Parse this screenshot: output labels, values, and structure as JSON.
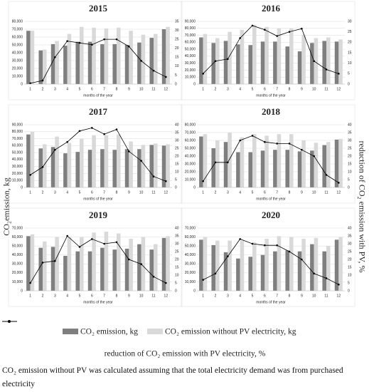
{
  "chart_data": [
    {
      "type": "bar",
      "title": "2015",
      "xlabel": "months of the year",
      "ylabel": "CO₂emission, kg",
      "y2label": "reduction of CO₂ emission with PV, %",
      "categories": [
        "1",
        "2",
        "3",
        "4",
        "5",
        "6",
        "7",
        "8",
        "9",
        "10",
        "11",
        "12"
      ],
      "series": [
        {
          "name": "CO₂ emission, kg",
          "type": "bar",
          "color": "#7f7f7f",
          "values": [
            68000,
            43000,
            51000,
            49000,
            54000,
            54000,
            51000,
            51000,
            50000,
            53000,
            59000,
            70000
          ]
        },
        {
          "name": "CO₂ emission without PV electricity, kg",
          "type": "bar",
          "color": "#d9d9d9",
          "values": [
            68000,
            44000,
            55000,
            64000,
            73000,
            72000,
            71000,
            72000,
            68000,
            63000,
            64000,
            73000
          ]
        },
        {
          "name": "reduction of CO₂ emission with PV electricity, %",
          "type": "line",
          "axis": "y2",
          "color": "#000000",
          "values": [
            0.5,
            2,
            15,
            24,
            23,
            22,
            25,
            25,
            21,
            13,
            7.5,
            4
          ]
        }
      ],
      "ylim": [
        0,
        80000
      ],
      "yticks": [
        0,
        {
          "value": 10000,
          "label": "10,000"
        },
        {
          "value": 20000,
          "label": "20,000"
        },
        {
          "value": 30000,
          "label": "30,000"
        },
        {
          "value": 40000,
          "label": "40,000"
        },
        {
          "value": 50000,
          "label": "50,000"
        },
        {
          "value": 60000,
          "label": "60,000"
        },
        {
          "value": 70000,
          "label": "70,000"
        },
        {
          "value": 80000,
          "label": "80,000"
        }
      ],
      "y2lim": [
        0,
        35
      ],
      "y2ticks": [
        0,
        5,
        10,
        15,
        20,
        25,
        30,
        35
      ],
      "grid": true
    },
    {
      "type": "bar",
      "title": "2016",
      "xlabel": "months of the year",
      "categories": [
        "1",
        "2",
        "3",
        "4",
        "5",
        "6",
        "7",
        "8",
        "9",
        "10",
        "11",
        "12"
      ],
      "series": [
        {
          "type": "bar",
          "color": "#7f7f7f",
          "values": [
            67000,
            59000,
            62000,
            57000,
            56000,
            61000,
            61000,
            54000,
            47000,
            59000,
            62000,
            61000
          ]
        },
        {
          "type": "bar",
          "color": "#d9d9d9",
          "values": [
            72000,
            66000,
            75000,
            78000,
            85000,
            82000,
            80000,
            80000,
            71000,
            66000,
            67000,
            64000
          ]
        },
        {
          "type": "line",
          "axis": "y2",
          "color": "#000000",
          "values": [
            5,
            11,
            12,
            22,
            28,
            26,
            23,
            25,
            26.5,
            11,
            7,
            5
          ]
        }
      ],
      "ylim": [
        0,
        90000
      ],
      "yticks": [
        0,
        {
          "value": 10000,
          "label": "10,000"
        },
        {
          "value": 20000,
          "label": "20,000"
        },
        {
          "value": 30000,
          "label": "30,000"
        },
        {
          "value": 40000,
          "label": "40,000"
        },
        {
          "value": 50000,
          "label": "50,000"
        },
        {
          "value": 60000,
          "label": "60,000"
        },
        {
          "value": 70000,
          "label": "70,000"
        },
        {
          "value": 80000,
          "label": "80,000"
        },
        {
          "value": 90000,
          "label": "90,000"
        }
      ],
      "y2lim": [
        0,
        30
      ],
      "y2ticks": [
        0,
        5,
        10,
        15,
        20,
        25,
        30
      ],
      "grid": true
    },
    {
      "type": "bar",
      "title": "2017",
      "xlabel": "months of the year",
      "categories": [
        "1",
        "2",
        "3",
        "4",
        "5",
        "6",
        "7",
        "8",
        "9",
        "10",
        "11",
        "12"
      ],
      "series": [
        {
          "type": "bar",
          "color": "#7f7f7f",
          "values": [
            76000,
            56000,
            58000,
            49000,
            51000,
            54000,
            55000,
            54000,
            55000,
            55000,
            61000,
            60000
          ]
        },
        {
          "type": "bar",
          "color": "#d9d9d9",
          "values": [
            80000,
            62000,
            73000,
            64000,
            70000,
            75000,
            75000,
            76000,
            66000,
            61000,
            63000,
            62000
          ]
        },
        {
          "type": "line",
          "axis": "y2",
          "color": "#000000",
          "values": [
            8,
            13,
            24,
            29,
            36,
            38,
            34,
            37,
            23,
            17,
            7,
            4
          ]
        }
      ],
      "ylim": [
        0,
        90000
      ],
      "yticks": [
        0,
        {
          "value": 10000,
          "label": "10,000"
        },
        {
          "value": 20000,
          "label": "20,000"
        },
        {
          "value": 30000,
          "label": "30,000"
        },
        {
          "value": 40000,
          "label": "40,000"
        },
        {
          "value": 50000,
          "label": "50,000"
        },
        {
          "value": 60000,
          "label": "60,000"
        },
        {
          "value": 70000,
          "label": "70,000"
        },
        {
          "value": 80000,
          "label": "80,000"
        },
        {
          "value": 90000,
          "label": "90,000"
        }
      ],
      "y2lim": [
        0,
        40
      ],
      "y2ticks": [
        0,
        5,
        10,
        15,
        20,
        25,
        30,
        35,
        40
      ],
      "grid": true
    },
    {
      "type": "bar",
      "title": "2018",
      "xlabel": "months of the year",
      "categories": [
        "1",
        "2",
        "3",
        "4",
        "5",
        "6",
        "7",
        "8",
        "9",
        "10",
        "11",
        "12"
      ],
      "series": [
        {
          "type": "bar",
          "color": "#7f7f7f",
          "values": [
            65000,
            50000,
            58000,
            45000,
            45000,
            47000,
            48000,
            48000,
            46000,
            47000,
            54000,
            61000
          ]
        },
        {
          "type": "bar",
          "color": "#d9d9d9",
          "values": [
            68000,
            60000,
            70000,
            64000,
            68000,
            66000,
            68000,
            68000,
            60000,
            57000,
            58000,
            62000
          ]
        },
        {
          "type": "line",
          "axis": "y2",
          "color": "#000000",
          "values": [
            4,
            16,
            16,
            30,
            33,
            29,
            28,
            28,
            24,
            20,
            8,
            3
          ]
        }
      ],
      "ylim": [
        0,
        80000
      ],
      "yticks": [
        0,
        {
          "value": 10000,
          "label": "10,000"
        },
        {
          "value": 20000,
          "label": "20,000"
        },
        {
          "value": 30000,
          "label": "30,000"
        },
        {
          "value": 40000,
          "label": "40,000"
        },
        {
          "value": 50000,
          "label": "50,000"
        },
        {
          "value": 60000,
          "label": "60,000"
        },
        {
          "value": 70000,
          "label": "70,000"
        },
        {
          "value": 80000,
          "label": "80,000"
        }
      ],
      "y2lim": [
        0,
        40
      ],
      "y2ticks": [
        0,
        5,
        10,
        15,
        20,
        25,
        30,
        35,
        40
      ],
      "grid": true
    },
    {
      "type": "bar",
      "title": "2019",
      "xlabel": "months of the year",
      "categories": [
        "1",
        "2",
        "3",
        "4",
        "5",
        "6",
        "7",
        "8",
        "9",
        "10",
        "11",
        "12"
      ],
      "series": [
        {
          "type": "bar",
          "color": "#7f7f7f",
          "values": [
            61000,
            48000,
            49000,
            39000,
            44000,
            44000,
            48000,
            46000,
            47000,
            52000,
            46000,
            59000
          ]
        },
        {
          "type": "bar",
          "color": "#d9d9d9",
          "values": [
            63000,
            55000,
            60000,
            60000,
            60000,
            65000,
            66000,
            64000,
            58000,
            60000,
            52000,
            61000
          ]
        },
        {
          "type": "line",
          "axis": "y2",
          "color": "#000000",
          "values": [
            5,
            18,
            19,
            35,
            28,
            33,
            30,
            31,
            20,
            17,
            9,
            5
          ]
        }
      ],
      "ylim": [
        0,
        70000
      ],
      "yticks": [
        0,
        {
          "value": 10000,
          "label": "10,000"
        },
        {
          "value": 20000,
          "label": "20,000"
        },
        {
          "value": 30000,
          "label": "30,000"
        },
        {
          "value": 40000,
          "label": "40,000"
        },
        {
          "value": 50000,
          "label": "50,000"
        },
        {
          "value": 60000,
          "label": "60,000"
        },
        {
          "value": 70000,
          "label": "70,000"
        }
      ],
      "y2lim": [
        0,
        40
      ],
      "y2ticks": [
        0,
        5,
        10,
        15,
        20,
        25,
        30,
        35,
        40
      ],
      "grid": true
    },
    {
      "type": "bar",
      "title": "2020",
      "xlabel": "months of the year",
      "categories": [
        "1",
        "2",
        "3",
        "4",
        "5",
        "6",
        "7",
        "8",
        "9",
        "10",
        "11",
        "12"
      ],
      "series": [
        {
          "type": "bar",
          "color": "#7f7f7f",
          "values": [
            57000,
            51000,
            43000,
            36000,
            38000,
            40000,
            44000,
            45000,
            44000,
            52000,
            44000,
            57000
          ]
        },
        {
          "type": "bar",
          "color": "#d9d9d9",
          "values": [
            60000,
            56000,
            56000,
            56000,
            54000,
            58000,
            61000,
            60000,
            58000,
            59000,
            50000,
            60000
          ]
        },
        {
          "type": "line",
          "axis": "y2",
          "color": "#000000",
          "values": [
            7,
            11,
            22,
            33,
            30,
            29,
            29,
            25,
            20,
            11,
            8,
            4
          ]
        }
      ],
      "ylim": [
        0,
        70000
      ],
      "yticks": [
        0,
        {
          "value": 10000,
          "label": "10,000"
        },
        {
          "value": 20000,
          "label": "20,000"
        },
        {
          "value": 30000,
          "label": "30,000"
        },
        {
          "value": 40000,
          "label": "40,000"
        },
        {
          "value": 50000,
          "label": "50,000"
        },
        {
          "value": 60000,
          "label": "60,000"
        },
        {
          "value": 70000,
          "label": "70,000"
        }
      ],
      "y2lim": [
        0,
        40
      ],
      "y2ticks": [
        0,
        5,
        10,
        15,
        20,
        25,
        30,
        35,
        40
      ],
      "grid": true
    }
  ],
  "note": "CO₂ emission without PV was calculated assuming that the total electricity demand was from purchased electricity"
}
